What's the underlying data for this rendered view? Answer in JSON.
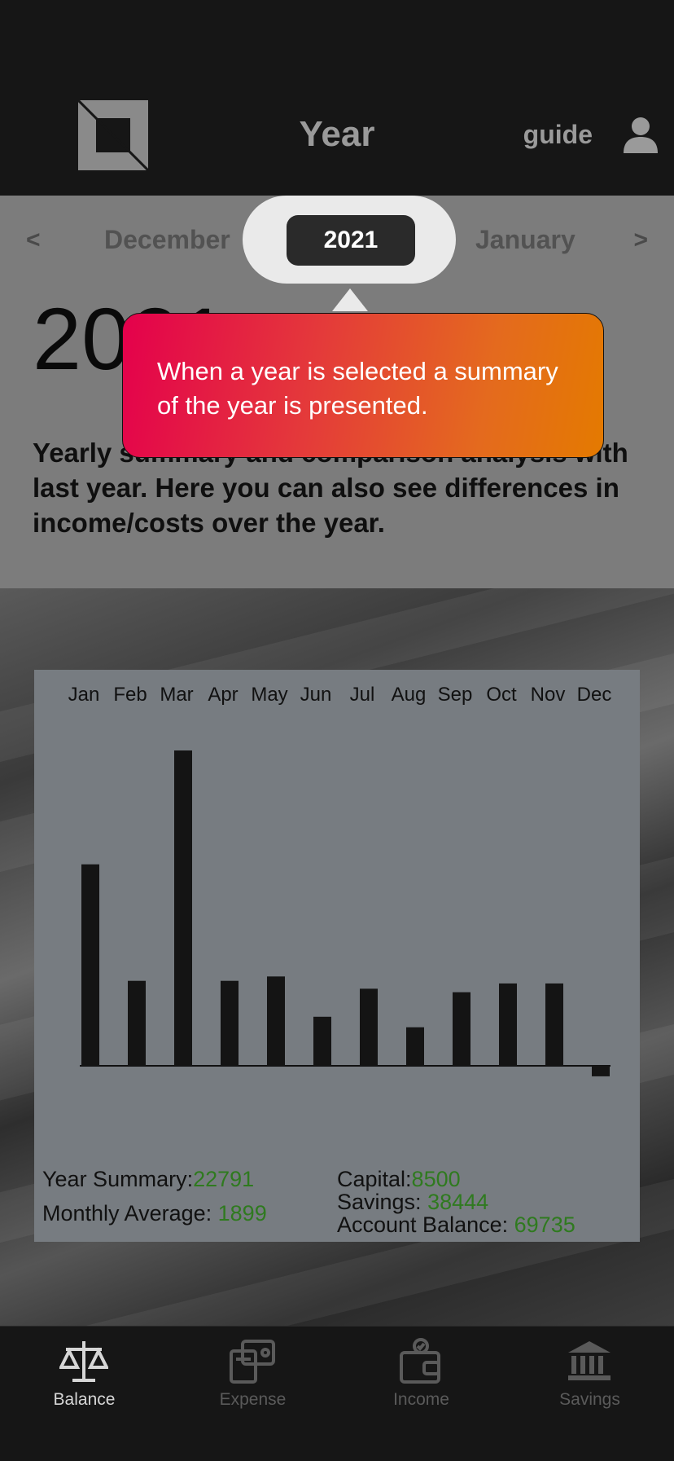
{
  "header": {
    "title": "Year",
    "guide_label": "guide",
    "icons": [
      "logo-icon",
      "user-icon"
    ]
  },
  "month_nav": {
    "prev_arrow": "<",
    "next_arrow": ">",
    "prev_month": "December",
    "selected_year": "2021",
    "next_month": "January"
  },
  "summary": {
    "year": "2021",
    "description": "Yearly summary and comparison analysis with last year. Here you can also see differences in income/costs over the year."
  },
  "tooltip": {
    "text": "When a year is selected a summary of the year is presented."
  },
  "chart_data": {
    "type": "bar",
    "categories": [
      "Jan",
      "Feb",
      "Mar",
      "Apr",
      "May",
      "Jun",
      "Jul",
      "Aug",
      "Sep",
      "Oct",
      "Nov",
      "Dec"
    ],
    "values": [
      2300,
      970,
      3600,
      970,
      1020,
      560,
      880,
      440,
      840,
      940,
      940,
      -120
    ],
    "colors": {
      "bar": "#141414"
    }
  },
  "stats": {
    "year_summary_label": "Year Summary:",
    "year_summary_value": "22791",
    "monthly_average_label": "Monthly Average: ",
    "monthly_average_value": "1899",
    "capital_label": "Capital:",
    "capital_value": "8500",
    "savings_label": "Savings: ",
    "savings_value": "38444",
    "account_balance_label": "Account Balance: ",
    "account_balance_value": "69735",
    "value_color": "#2f7a1f"
  },
  "bottom_nav": {
    "items": [
      {
        "label": "Balance",
        "icon": "scale-icon",
        "active": true
      },
      {
        "label": "Expense",
        "icon": "calculator-wallet-icon",
        "active": false
      },
      {
        "label": "Income",
        "icon": "wallet-check-icon",
        "active": false
      },
      {
        "label": "Savings",
        "icon": "bank-icon",
        "active": false
      }
    ],
    "active_color": "#d6d6d6",
    "inactive_color": "#5a5a5a"
  }
}
